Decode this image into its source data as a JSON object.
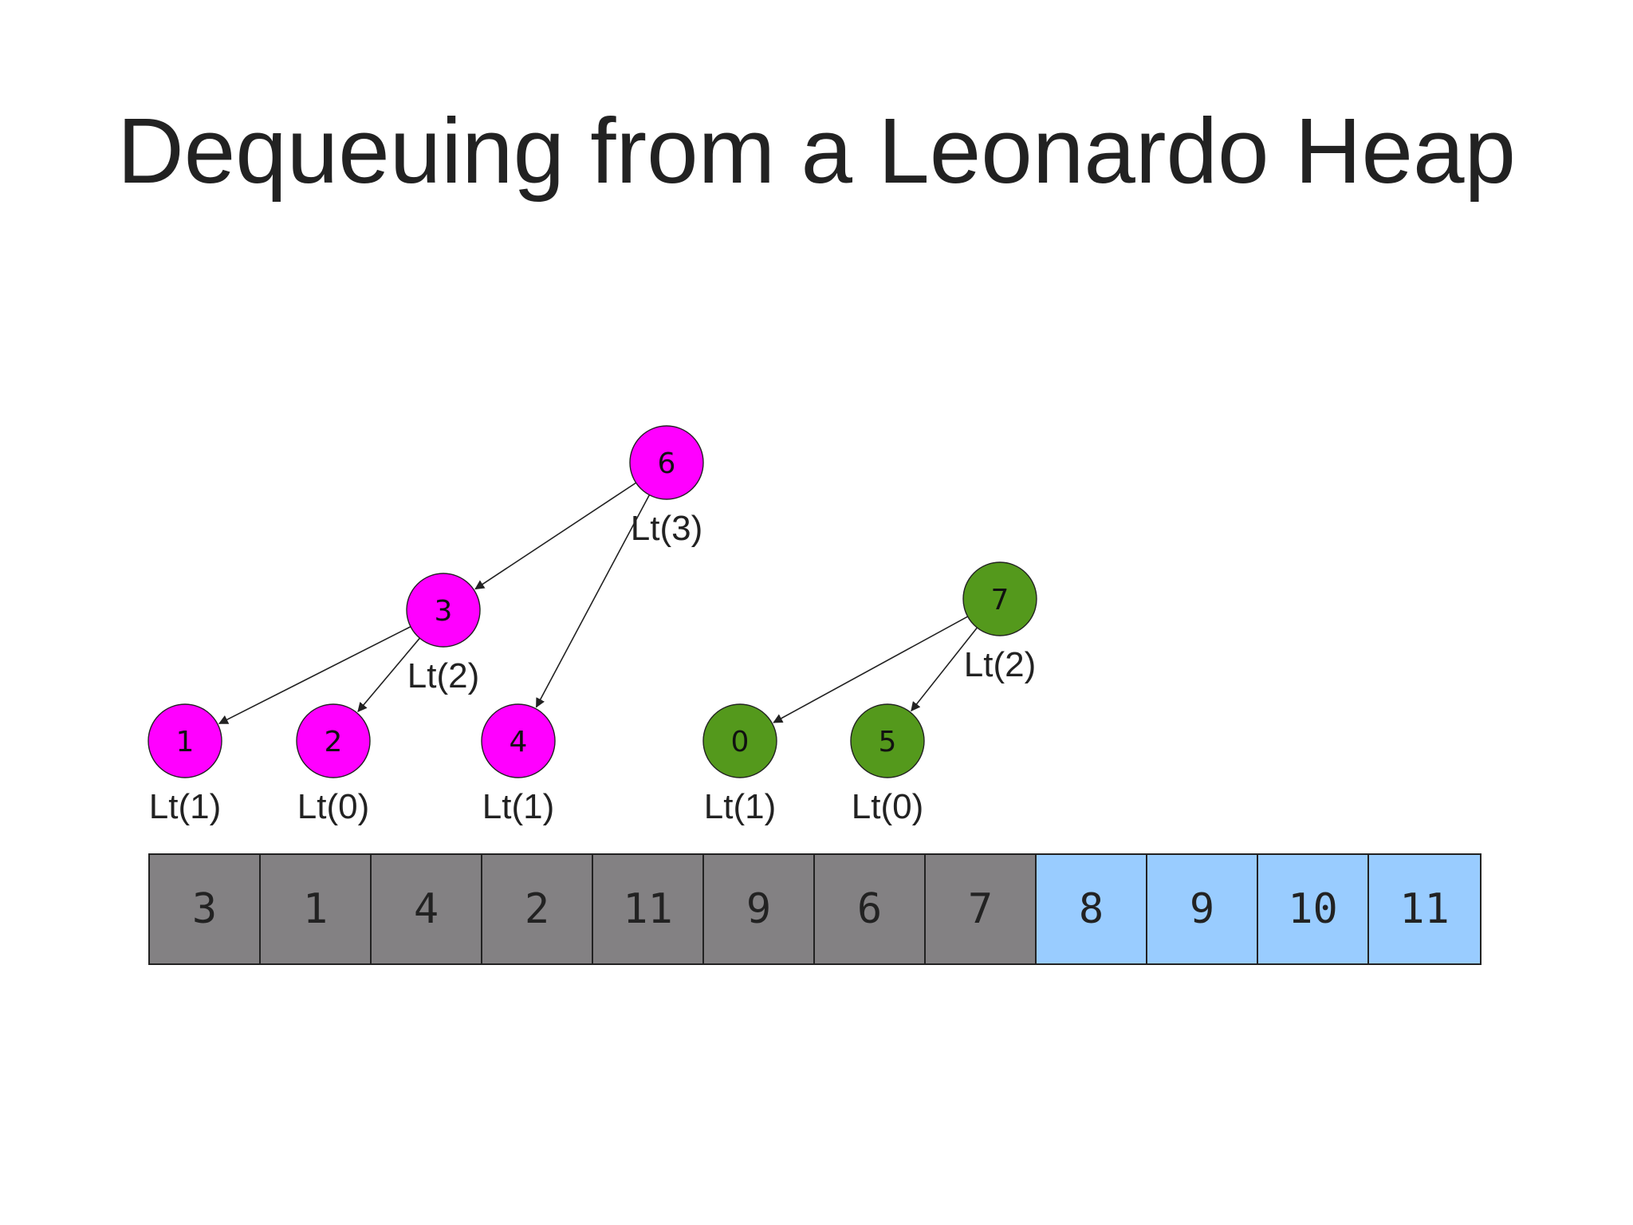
{
  "title": "Dequeuing from a Leonardo Heap",
  "colors": {
    "magenta_node": "#ff00ff",
    "green_node": "#54991c",
    "heap_cell": "#838183",
    "free_cell": "#99ccff",
    "edge": "#222222"
  },
  "nodes": [
    {
      "id": "6",
      "label": "6",
      "rank_label": "Lt(3)",
      "color": "magenta"
    },
    {
      "id": "3",
      "label": "3",
      "rank_label": "Lt(2)",
      "color": "magenta"
    },
    {
      "id": "1",
      "label": "1",
      "rank_label": "Lt(1)",
      "color": "magenta"
    },
    {
      "id": "2",
      "label": "2",
      "rank_label": "Lt(0)",
      "color": "magenta"
    },
    {
      "id": "4",
      "label": "4",
      "rank_label": "Lt(1)",
      "color": "magenta"
    },
    {
      "id": "7",
      "label": "7",
      "rank_label": "Lt(2)",
      "color": "green"
    },
    {
      "id": "0",
      "label": "0",
      "rank_label": "Lt(1)",
      "color": "green"
    },
    {
      "id": "5",
      "label": "5",
      "rank_label": "Lt(0)",
      "color": "green"
    }
  ],
  "edges": [
    {
      "from": "6",
      "to": "3"
    },
    {
      "from": "6",
      "to": "4"
    },
    {
      "from": "3",
      "to": "1"
    },
    {
      "from": "3",
      "to": "2"
    },
    {
      "from": "7",
      "to": "0"
    },
    {
      "from": "7",
      "to": "5"
    }
  ],
  "array": [
    {
      "value": "3",
      "state": "heap"
    },
    {
      "value": "1",
      "state": "heap"
    },
    {
      "value": "4",
      "state": "heap"
    },
    {
      "value": "2",
      "state": "heap"
    },
    {
      "value": "11",
      "state": "heap"
    },
    {
      "value": "9",
      "state": "heap"
    },
    {
      "value": "6",
      "state": "heap"
    },
    {
      "value": "7",
      "state": "heap"
    },
    {
      "value": "8",
      "state": "free"
    },
    {
      "value": "9",
      "state": "free"
    },
    {
      "value": "10",
      "state": "free"
    },
    {
      "value": "11",
      "state": "free"
    }
  ]
}
